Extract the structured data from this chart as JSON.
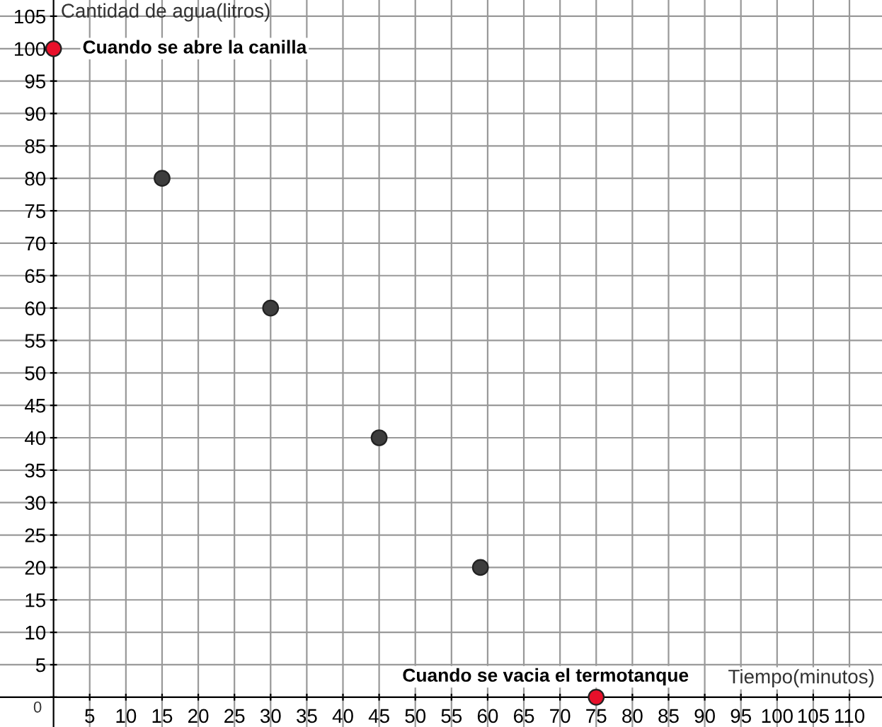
{
  "chart_data": {
    "type": "scatter",
    "xlabel": "Tiempo(minutos)",
    "ylabel": "Cantidad de agua(litros)",
    "x": [
      0,
      15,
      30,
      45,
      59,
      75
    ],
    "values": [
      100,
      80,
      60,
      40,
      20,
      0
    ],
    "colors": [
      "#e8102a",
      "#3d3d3d",
      "#3d3d3d",
      "#3d3d3d",
      "#3d3d3d",
      "#e8102a"
    ],
    "marker": "circle",
    "xlim": [
      -7.4,
      114.5
    ],
    "ylim": [
      -4.6,
      107.5
    ],
    "xticks": [
      5,
      10,
      15,
      20,
      25,
      30,
      35,
      40,
      45,
      50,
      55,
      60,
      65,
      70,
      75,
      80,
      85,
      90,
      95,
      100,
      105,
      110
    ],
    "yticks": [
      0,
      5,
      10,
      15,
      20,
      25,
      30,
      35,
      40,
      45,
      50,
      55,
      60,
      65,
      70,
      75,
      80,
      85,
      90,
      95,
      100,
      105
    ],
    "grid": true,
    "annotations": [
      {
        "text": "Cuando se abre la canilla",
        "x": 0,
        "y": 100
      },
      {
        "text": "Cuando se vacia el termotanque",
        "x": 75,
        "y": 0
      }
    ]
  }
}
